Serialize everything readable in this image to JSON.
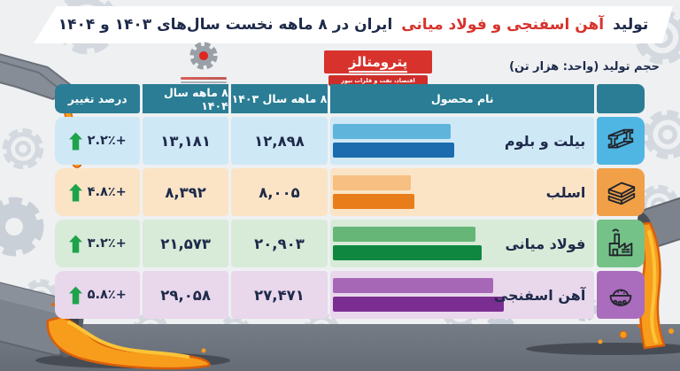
{
  "title": {
    "part1": "تولید",
    "part2": "آهن اسفنجی و فولاد میانی",
    "part3": "ایران در ۸ ماهه نخست سال‌های ۱۴۰۳ و ۱۴۰۴"
  },
  "brand": {
    "name": "پترومتالز",
    "tagline": "اقتصاد، نفت و فلزات نیوز"
  },
  "unit_label": "حجم تولید (واحد: هزار تن)",
  "table": {
    "headers": {
      "change": "درصد تغییر",
      "y1404": "۸ ماهه سال ۱۴۰۴",
      "y1403": "۸ ماهه سال ۱۴۰۳",
      "product": "نام محصول"
    },
    "rows": [
      {
        "product": "بیلت و بلوم",
        "v1403": "۱۲,۸۹۸",
        "v1404": "۱۳,۱۸۱",
        "change": "۲.۲٪+",
        "bars_pct": [
          45.5,
          47
        ],
        "colors": {
          "bg": "#cfe8f6",
          "bar1403": "#5fb4dc",
          "bar1404": "#1a6cae",
          "iconBg": "#4fb6e3"
        }
      },
      {
        "product": "اسلب",
        "v1403": "۸,۰۰۵",
        "v1404": "۸,۳۹۲",
        "change": "۴.۸٪+",
        "bars_pct": [
          30,
          31.5
        ],
        "colors": {
          "bg": "#fae4c5",
          "bar1403": "#f7bf82",
          "bar1404": "#e87d1a",
          "iconBg": "#f2a048"
        }
      },
      {
        "product": "فولاد میانی",
        "v1403": "۲۰,۹۰۳",
        "v1404": "۲۱,۵۷۳",
        "change": "۳.۲٪+",
        "bars_pct": [
          55,
          57.5
        ],
        "colors": {
          "bg": "#d7ebd8",
          "bar1403": "#66b678",
          "bar1404": "#0f8740",
          "iconBg": "#74c287"
        }
      },
      {
        "product": "آهن اسفنجی",
        "v1403": "۲۷,۴۷۱",
        "v1404": "۲۹,۰۵۸",
        "change": "۵.۸٪+",
        "bars_pct": [
          62,
          66
        ],
        "colors": {
          "bg": "#e9d7ec",
          "bar1403": "#a767b7",
          "bar1404": "#7b2e92",
          "iconBg": "#aa6cbc"
        }
      }
    ]
  },
  "palette": {
    "header_bg": "#2a7d94",
    "title_navy": "#1e2a4a",
    "title_red": "#d7332c",
    "arrow_green": "#1ea34b",
    "molten_orange": "#f89c1c",
    "molten_outline": "#d95f0a",
    "floor_gray": "#6c737d"
  },
  "chart_data": {
    "type": "bar",
    "title": "تولید آهن اسفنجی و فولاد میانی ایران در ۸ ماهه نخست سال‌های ۱۴۰۳ و ۱۴۰۴",
    "unit": "هزار تن",
    "categories": [
      "بیلت و بلوم",
      "اسلب",
      "فولاد میانی",
      "آهن اسفنجی"
    ],
    "series": [
      {
        "name": "۸ ماهه سال ۱۴۰۳",
        "values": [
          12898,
          8005,
          20903,
          27471
        ]
      },
      {
        "name": "۸ ماهه سال ۱۴۰۴",
        "values": [
          13181,
          8392,
          21573,
          29058
        ]
      }
    ],
    "change_percent": [
      "+2.2%",
      "+4.8%",
      "+3.2%",
      "+5.8%"
    ],
    "legend_position": "table-columns",
    "orientation": "horizontal"
  }
}
